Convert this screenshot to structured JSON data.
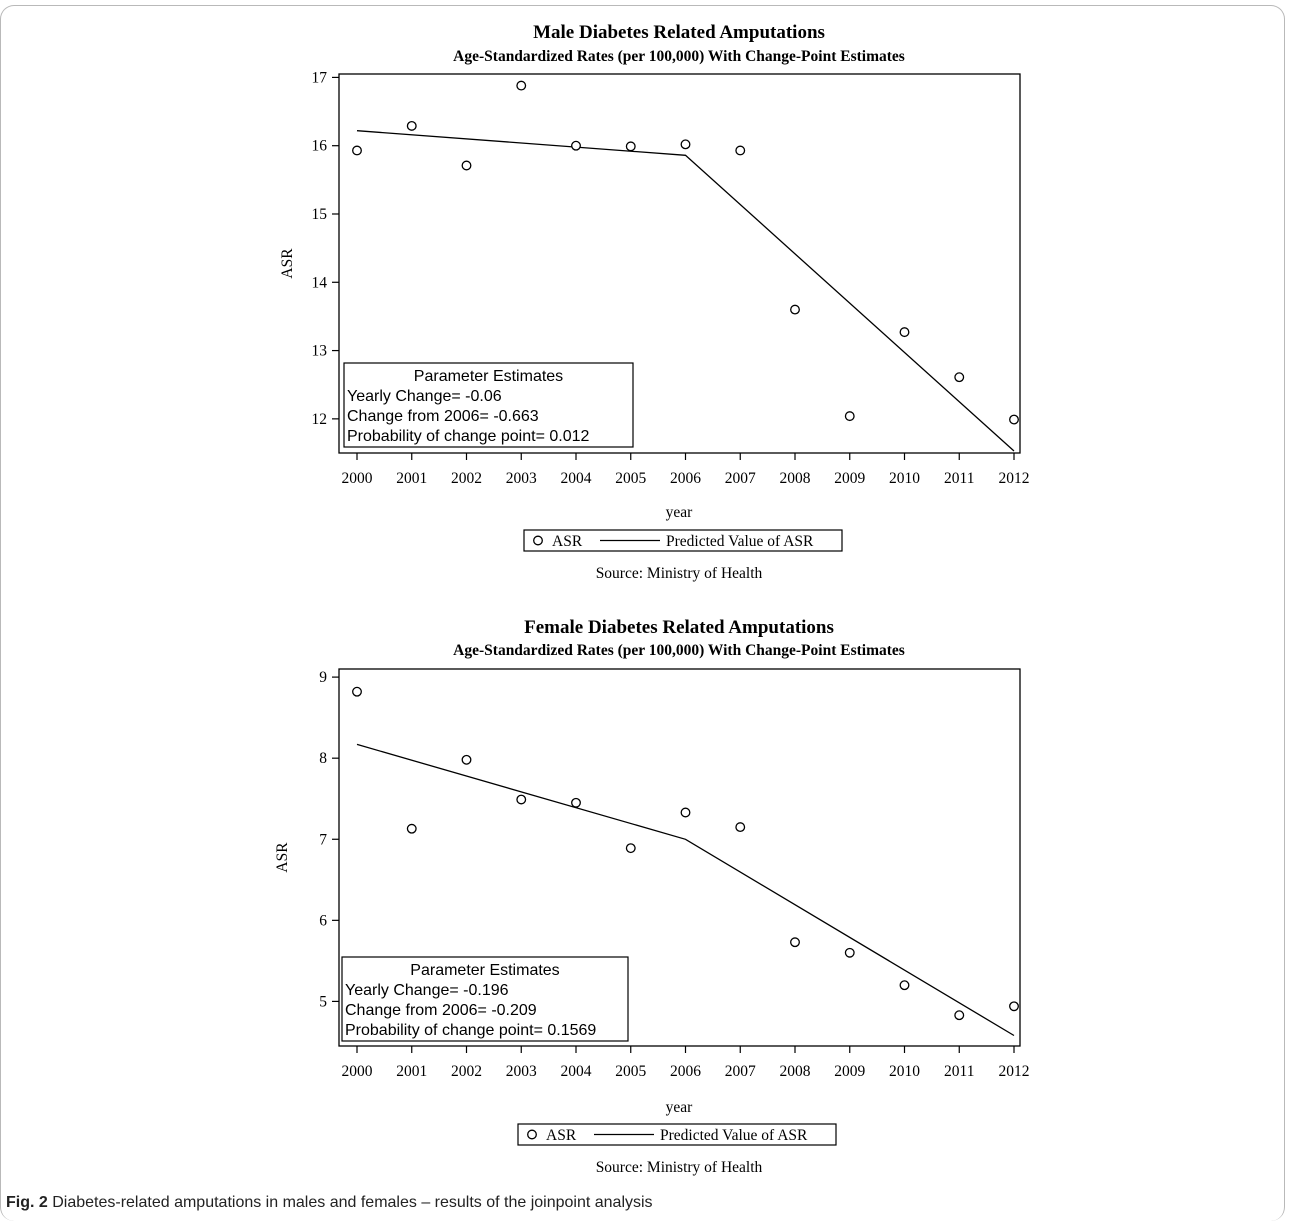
{
  "chart_data": [
    {
      "type": "scatter",
      "title": "Male Diabetes Related Amputations",
      "subtitle": "Age-Standardized Rates (per 100,000) With Change-Point Estimates",
      "xlabel": "year",
      "ylabel": "ASR",
      "xlim": [
        2000,
        2012
      ],
      "ylim": [
        11.5,
        17.05
      ],
      "yticks": [
        12,
        13,
        14,
        15,
        16,
        17
      ],
      "x": [
        2000,
        2001,
        2002,
        2003,
        2004,
        2005,
        2006,
        2007,
        2008,
        2009,
        2010,
        2011,
        2012
      ],
      "series": [
        {
          "name": "ASR",
          "kind": "markers",
          "values": [
            15.93,
            16.29,
            15.71,
            16.88,
            16.0,
            15.99,
            16.02,
            15.93,
            13.6,
            12.04,
            13.27,
            12.61,
            11.99
          ]
        },
        {
          "name": "Predicted Value of ASR",
          "kind": "line",
          "x": [
            2000,
            2006,
            2012
          ],
          "values": [
            16.22,
            15.86,
            11.53
          ]
        }
      ],
      "parameter_estimates": {
        "heading": "Parameter Estimates",
        "lines": [
          "Yearly Change=  -0.06",
          "Change from 2006= -0.663",
          "Probability of change point=  0.012"
        ]
      },
      "source": "Source: Ministry of Health"
    },
    {
      "type": "scatter",
      "title": "Female Diabetes Related Amputations",
      "subtitle": "Age-Standardized Rates (per 100,000) With Change-Point Estimates",
      "xlabel": "year",
      "ylabel": "ASR",
      "xlim": [
        2000,
        2012
      ],
      "ylim": [
        4.45,
        9.1
      ],
      "yticks": [
        5,
        6,
        7,
        8,
        9
      ],
      "x": [
        2000,
        2001,
        2002,
        2003,
        2004,
        2005,
        2006,
        2007,
        2008,
        2009,
        2010,
        2011,
        2012
      ],
      "series": [
        {
          "name": "ASR",
          "kind": "markers",
          "values": [
            8.82,
            7.13,
            7.98,
            7.49,
            7.45,
            6.89,
            7.33,
            7.15,
            5.73,
            5.6,
            5.2,
            4.83,
            4.94
          ]
        },
        {
          "name": "Predicted Value of ASR",
          "kind": "line",
          "x": [
            2000,
            2006,
            2012
          ],
          "values": [
            8.17,
            7.0,
            4.58
          ]
        }
      ],
      "parameter_estimates": {
        "heading": "Parameter Estimates",
        "lines": [
          "Yearly Change= -0.196",
          "Change from 2006= -0.209",
          "Probability of change point= 0.1569"
        ]
      },
      "source": "Source: Ministry of Health"
    }
  ],
  "caption": {
    "label": "Fig. 2",
    "text": " Diabetes-related amputations in males and females – results of the joinpoint analysis"
  }
}
